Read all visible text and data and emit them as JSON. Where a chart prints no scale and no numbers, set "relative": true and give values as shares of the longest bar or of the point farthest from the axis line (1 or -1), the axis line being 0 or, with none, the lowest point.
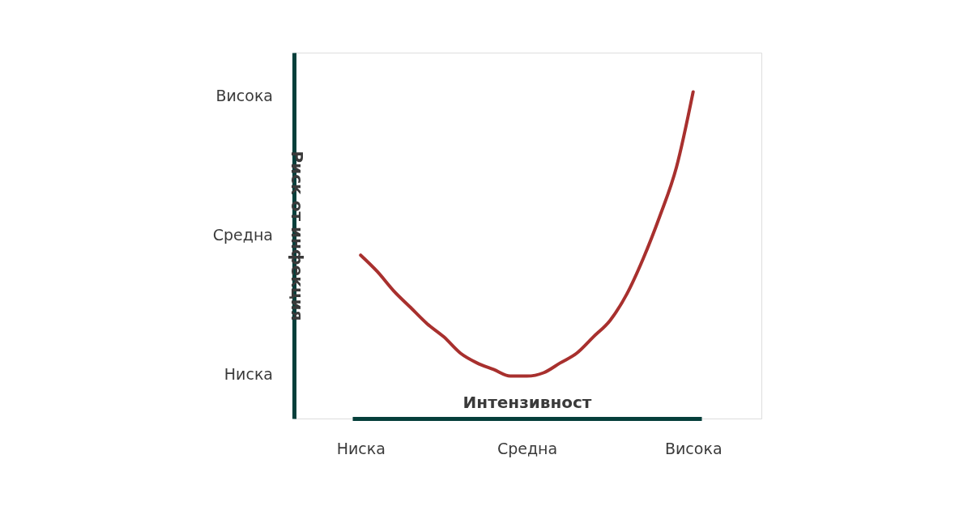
{
  "chart_data": {
    "type": "line",
    "xlabel": "Интензивност",
    "ylabel": "Риск от инфекция",
    "relative": true,
    "categories": [
      "Ниска",
      null,
      null,
      null,
      null,
      null,
      null,
      null,
      null,
      null,
      "Средна",
      null,
      null,
      null,
      null,
      null,
      null,
      null,
      null,
      null,
      "Висока"
    ],
    "annotations": [
      "Ниска",
      "Средна",
      "Висока"
    ],
    "series": [
      {
        "color": "#a8302e",
        "values": [
          0.5,
          0.45,
          0.39,
          0.34,
          0.29,
          0.25,
          0.2,
          0.17,
          0.15,
          0.13,
          0.13,
          0.14,
          0.17,
          0.2,
          0.25,
          0.3,
          0.38,
          0.49,
          0.62,
          0.77,
          1.0
        ]
      }
    ]
  }
}
